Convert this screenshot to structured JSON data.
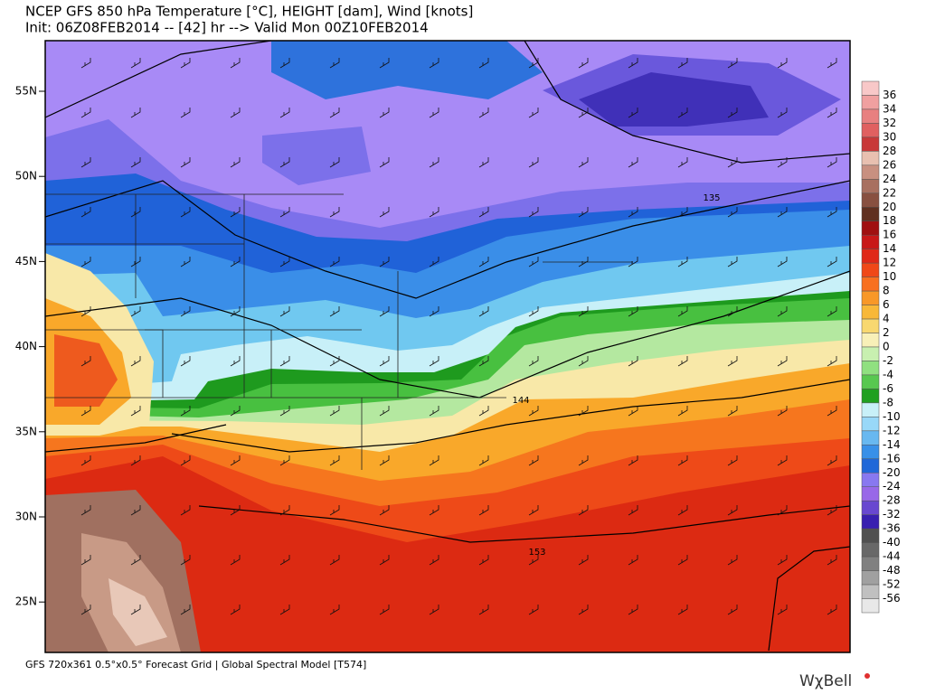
{
  "header": {
    "title": "NCEP GFS 850 hPa Temperature [°C], HEIGHT [dam], Wind [knots]",
    "subtitle": "Init: 06Z08FEB2014 -- [42] hr --> Valid Mon 00Z10FEB2014"
  },
  "map": {
    "latitude_labels": [
      "55N",
      "50N",
      "45N",
      "40N",
      "35N",
      "30N",
      "25N"
    ],
    "contour_labels": [
      135,
      144,
      153
    ]
  },
  "colorbar": {
    "labels": [
      36,
      34,
      32,
      30,
      28,
      26,
      24,
      22,
      20,
      18,
      16,
      14,
      12,
      10,
      8,
      6,
      4,
      2,
      0,
      -2,
      -4,
      -6,
      -8,
      -10,
      -12,
      -14,
      -16,
      -20,
      -24,
      -28,
      -32,
      -36,
      -40,
      -44,
      -48,
      -52,
      -56
    ],
    "colors": [
      "#f8c8c8",
      "#f0a0a0",
      "#e88080",
      "#e06060",
      "#c83838",
      "#e8c0b0",
      "#c89080",
      "#a87060",
      "#885040",
      "#603020",
      "#a01010",
      "#c81818",
      "#e02818",
      "#f04818",
      "#f87020",
      "#f89828",
      "#f8b838",
      "#f8d870",
      "#f8f0b8",
      "#c8f0b0",
      "#90e080",
      "#58c850",
      "#20a020",
      "#c8f0f8",
      "#98d8f8",
      "#68b8f0",
      "#3890e8",
      "#2068d8",
      "#8878f0",
      "#9868e8",
      "#6848d0",
      "#3820b0",
      "#505050",
      "#686868",
      "#808080",
      "#a0a0a0",
      "#c0c0c0",
      "#e8e8e8"
    ]
  },
  "footer": {
    "text": "GFS 720x361 0.5°x0.5° Forecast Grid | Global Spectral Model [T574]",
    "logo": "WχBell"
  }
}
